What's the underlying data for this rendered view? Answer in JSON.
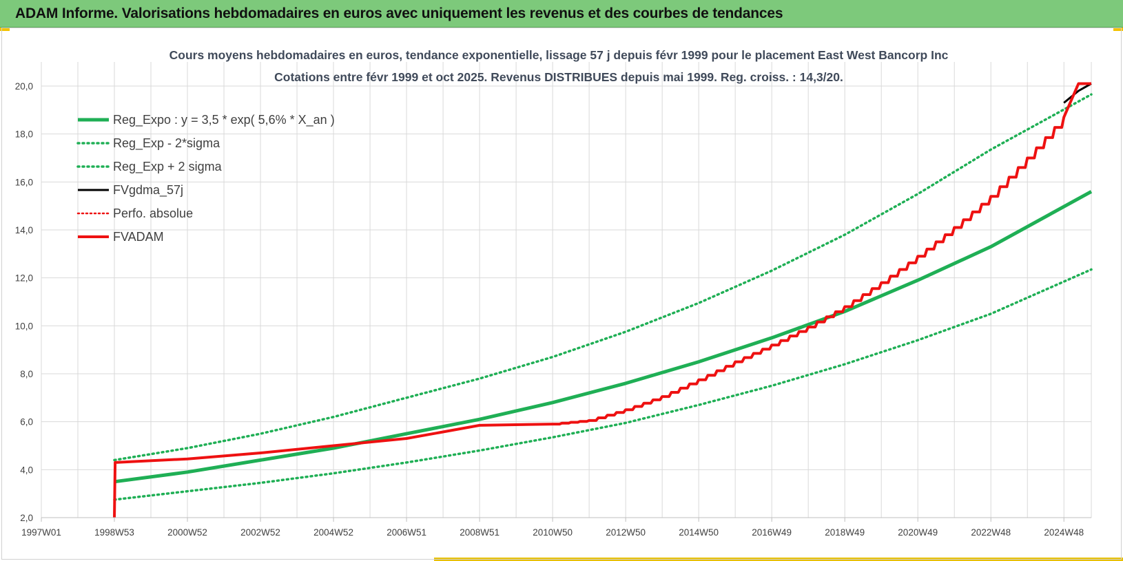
{
  "header": {
    "title": "ADAM Informe. Valorisations hebdomadaires en euros avec uniquement les revenus et des courbes de tendances"
  },
  "colors": {
    "header_bg": "#7dc97b",
    "reg_green": "#1faf55",
    "adam_red": "#ee1111",
    "fv_black": "#000000",
    "grid": "#d9d9d9"
  },
  "chart_data": {
    "type": "line",
    "title_lines": [
      "Cours moyens hebdomadaires en euros, tendance exponentielle, lissage 57 j depuis févr 1999 pour le placement East West Bancorp Inc",
      "Cotations entre févr 1999 et oct 2025. Revenus DISTRIBUES depuis mai 1999. Reg. croiss. : 14,3/20."
    ],
    "x_ticks": [
      "1997W01",
      "1998W53",
      "2000W52",
      "2002W52",
      "2004W52",
      "2006W51",
      "2008W51",
      "2010W50",
      "2012W50",
      "2014W50",
      "2016W49",
      "2018W49",
      "2020W49",
      "2022W48",
      "2024W48"
    ],
    "x_range_years": [
      1997.0,
      2025.75
    ],
    "y_ticks": [
      "2,0",
      "4,0",
      "6,0",
      "8,0",
      "10,0",
      "12,0",
      "14,0",
      "16,0",
      "18,0",
      "20,0"
    ],
    "ylim": [
      2.0,
      20.0
    ],
    "grid": true,
    "legend_position": "top-left",
    "legend": [
      {
        "label": "Reg_Expo : y = 3,5 * exp( 5,6% *  X_an )",
        "style": "solid-green"
      },
      {
        "label": "Reg_Exp - 2*sigma",
        "style": "dotted-green"
      },
      {
        "label": "Reg_Exp + 2 sigma",
        "style": "dotted-green"
      },
      {
        "label": "FVgdma_57j",
        "style": "solid-black"
      },
      {
        "label": "Perfo. absolue",
        "style": "dotted-red"
      },
      {
        "label": "FVADAM",
        "style": "solid-red"
      }
    ],
    "series": [
      {
        "name": "Reg_Expo : y = 3,5 * exp( 5,6% *  X_an )",
        "x": [
          1999.0,
          2001.0,
          2003.0,
          2005.0,
          2007.0,
          2009.0,
          2011.0,
          2013.0,
          2015.0,
          2017.0,
          2019.0,
          2021.0,
          2023.0,
          2025.75
        ],
        "y": [
          3.5,
          3.9,
          4.4,
          4.9,
          5.5,
          6.1,
          6.8,
          7.6,
          8.5,
          9.5,
          10.6,
          11.9,
          13.3,
          15.6
        ]
      },
      {
        "name": "Reg_Exp - 2*sigma",
        "x": [
          1999.0,
          2001.0,
          2003.0,
          2005.0,
          2007.0,
          2009.0,
          2011.0,
          2013.0,
          2015.0,
          2017.0,
          2019.0,
          2021.0,
          2023.0,
          2025.75
        ],
        "y": [
          2.75,
          3.1,
          3.45,
          3.85,
          4.3,
          4.8,
          5.35,
          5.95,
          6.7,
          7.5,
          8.4,
          9.4,
          10.5,
          12.35
        ]
      },
      {
        "name": "Reg_Exp + 2 sigma",
        "x": [
          1999.0,
          2001.0,
          2003.0,
          2005.0,
          2007.0,
          2009.0,
          2011.0,
          2013.0,
          2015.0,
          2017.0,
          2019.0,
          2021.0,
          2023.0,
          2025.75
        ],
        "y": [
          4.4,
          4.9,
          5.5,
          6.2,
          7.0,
          7.8,
          8.7,
          9.75,
          10.95,
          12.3,
          13.8,
          15.5,
          17.35,
          19.65
        ]
      },
      {
        "name": "FVgdma_57j",
        "x": [
          2025.0,
          2025.4,
          2025.75
        ],
        "y": [
          19.3,
          19.8,
          20.1
        ]
      },
      {
        "name": "FVADAM",
        "x": [
          1999.0,
          1999.02,
          2001.0,
          2003.0,
          2005.0,
          2007.0,
          2009.0,
          2011.0,
          2012.0,
          2013.0,
          2014.0,
          2015.0,
          2016.0,
          2017.0,
          2018.0,
          2019.0,
          2020.0,
          2021.0,
          2022.0,
          2023.0,
          2024.0,
          2025.0,
          2025.4,
          2025.75
        ],
        "y": [
          2.0,
          4.3,
          4.45,
          4.7,
          5.0,
          5.3,
          5.85,
          5.9,
          6.05,
          6.5,
          7.05,
          7.75,
          8.5,
          9.2,
          9.95,
          10.8,
          11.8,
          12.9,
          14.1,
          15.4,
          17.0,
          18.7,
          20.1,
          20.1
        ]
      }
    ]
  }
}
